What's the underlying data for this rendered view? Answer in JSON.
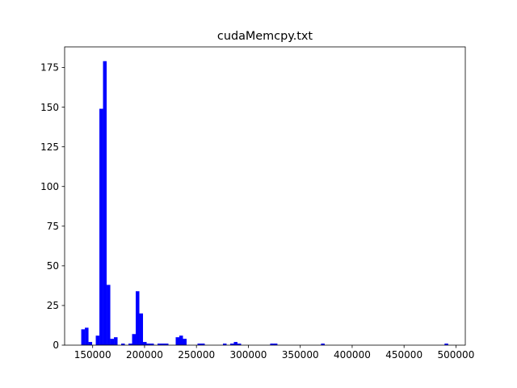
{
  "chart_data": {
    "type": "bar",
    "title": "cudaMemcpy.txt",
    "xlabel": "",
    "ylabel": "",
    "color": "#0000ff",
    "grid": false,
    "legend": "none",
    "xlim": [
      123000,
      509000
    ],
    "ylim": [
      0,
      188
    ],
    "x_ticks": [
      150000,
      200000,
      250000,
      300000,
      350000,
      400000,
      450000,
      500000
    ],
    "x_tick_labels": [
      "150000",
      "200000",
      "250000",
      "300000",
      "350000",
      "400000",
      "450000",
      "500000"
    ],
    "y_ticks": [
      0,
      25,
      50,
      75,
      100,
      125,
      150,
      175
    ],
    "y_tick_labels": [
      "0",
      "25",
      "50",
      "75",
      "100",
      "125",
      "150",
      "175"
    ],
    "bin_width": 3500,
    "bin_starts": [
      139000,
      142500,
      146000,
      149500,
      153000,
      156500,
      160000,
      163500,
      167000,
      170500,
      174000,
      177500,
      181000,
      184500,
      188000,
      191500,
      195000,
      198500,
      202000,
      205500,
      209000,
      212500,
      216000,
      219500,
      223000,
      226500,
      230000,
      233500,
      237000,
      240500,
      244000,
      247500,
      251000,
      254500,
      258000,
      261500,
      265000,
      268500,
      272000,
      275500,
      279000,
      282500,
      286000,
      289500,
      293000,
      296500,
      300000,
      303500,
      307000,
      310500,
      314000,
      317500,
      321000,
      324500,
      328000,
      331500,
      335000,
      338500,
      342000,
      345500,
      349000,
      352500,
      356000,
      359500,
      363000,
      366500,
      370000,
      373500,
      377000,
      380500,
      384000,
      387500,
      391000,
      394500,
      398000,
      401500,
      405000,
      408500,
      412000,
      415500,
      419000,
      422500,
      426000,
      429500,
      433000,
      436500,
      440000,
      443500,
      447000,
      450500,
      454000,
      457500,
      461000,
      464500,
      468000,
      471500,
      475000,
      478500,
      482000,
      485500,
      489000
    ],
    "values": [
      10,
      11,
      2,
      0,
      6,
      149,
      179,
      38,
      4,
      5,
      0,
      1,
      0,
      1,
      7,
      34,
      20,
      2,
      1,
      1,
      0,
      1,
      1,
      1,
      0,
      0,
      5,
      6,
      4,
      0,
      0,
      0,
      1,
      1,
      0,
      0,
      0,
      0,
      0,
      1,
      0,
      1,
      2,
      1,
      0,
      0,
      0,
      0,
      0,
      0,
      0,
      0,
      1,
      1,
      0,
      0,
      0,
      0,
      0,
      0,
      0,
      0,
      0,
      0,
      0,
      0,
      1,
      0,
      0,
      0,
      0,
      0,
      0,
      0,
      0,
      0,
      0,
      0,
      0,
      0,
      0,
      0,
      0,
      0,
      0,
      0,
      0,
      0,
      0,
      0,
      0,
      0,
      0,
      0,
      0,
      0,
      0,
      0,
      0,
      0,
      1
    ]
  }
}
